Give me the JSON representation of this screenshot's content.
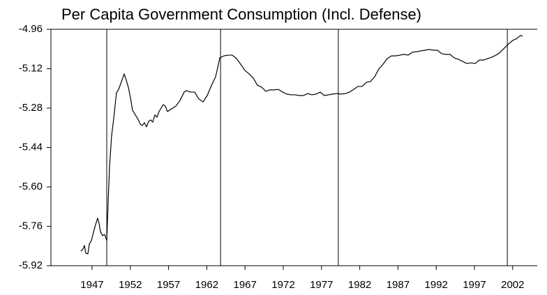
{
  "chart_data": {
    "type": "line",
    "title": "Per Capita Government Consumption (Incl. Defense)",
    "xlim": [
      1941.62,
      2005.21
    ],
    "ylim": [
      -5.92,
      -4.96
    ],
    "yticks": [
      -4.96,
      -5.12,
      -5.28,
      -5.44,
      {
        "value": -5.6,
        "label": "-5.60"
      },
      -5.76,
      -5.92
    ],
    "xticks": [
      1947,
      1952,
      1957,
      1962,
      1967,
      1972,
      1977,
      1982,
      1987,
      1992,
      1997,
      2002
    ],
    "vlines": [
      1948.92,
      1963.8,
      1979.2,
      2001.3
    ],
    "color": "#000000",
    "x": [
      1945.54,
      1945.81,
      1946.0,
      1946.18,
      1946.45,
      1946.64,
      1946.91,
      1947.18,
      1947.46,
      1947.73,
      1947.91,
      1948.09,
      1948.37,
      1948.64,
      1948.92,
      1949.1,
      1949.28,
      1949.55,
      1949.83,
      1950.19,
      1950.47,
      1950.74,
      1951.01,
      1951.2,
      1951.47,
      1951.74,
      1952.02,
      1952.29,
      1952.57,
      1952.84,
      1953.11,
      1953.3,
      1953.57,
      1953.84,
      1954.12,
      1954.39,
      1954.66,
      1954.94,
      1955.21,
      1955.49,
      1955.76,
      1956.03,
      1956.31,
      1956.58,
      1956.85,
      1957.4,
      1957.95,
      1958.5,
      1959.04,
      1959.32,
      1959.86,
      1960.41,
      1960.96,
      1961.51,
      1962.05,
      1962.6,
      1963.15,
      1963.42,
      1963.7,
      1964.24,
      1964.79,
      1965.34,
      1965.89,
      1966.43,
      1966.98,
      1967.53,
      1968.08,
      1968.62,
      1969.17,
      1969.72,
      1970.27,
      1970.81,
      1971.36,
      1971.91,
      1972.46,
      1973.0,
      1973.55,
      1974.1,
      1974.65,
      1975.19,
      1975.74,
      1976.29,
      1976.84,
      1977.38,
      1977.93,
      1978.48,
      1979.03,
      1979.57,
      1980.12,
      1980.67,
      1981.22,
      1981.76,
      1982.31,
      1982.86,
      1983.41,
      1983.95,
      1984.5,
      1985.05,
      1985.59,
      1986.14,
      1986.69,
      1987.24,
      1987.78,
      1988.33,
      1988.88,
      1989.43,
      1989.97,
      1990.52,
      1991.07,
      1991.62,
      1992.16,
      1992.71,
      1993.26,
      1993.81,
      1994.35,
      1994.9,
      1995.45,
      1996.0,
      1996.54,
      1997.09,
      1997.64,
      1998.19,
      1998.73,
      1999.28,
      1999.83,
      2000.38,
      2000.92,
      2001.47,
      2002.02,
      2002.57,
      2003.02,
      2003.3
    ],
    "values": [
      -5.861,
      -5.852,
      -5.838,
      -5.869,
      -5.872,
      -5.832,
      -5.818,
      -5.784,
      -5.753,
      -5.727,
      -5.747,
      -5.781,
      -5.798,
      -5.793,
      -5.818,
      -5.662,
      -5.521,
      -5.393,
      -5.322,
      -5.218,
      -5.204,
      -5.181,
      -5.158,
      -5.141,
      -5.167,
      -5.195,
      -5.238,
      -5.289,
      -5.303,
      -5.317,
      -5.331,
      -5.345,
      -5.351,
      -5.339,
      -5.356,
      -5.334,
      -5.328,
      -5.337,
      -5.308,
      -5.317,
      -5.294,
      -5.28,
      -5.266,
      -5.272,
      -5.294,
      -5.283,
      -5.272,
      -5.249,
      -5.215,
      -5.209,
      -5.215,
      -5.215,
      -5.243,
      -5.255,
      -5.229,
      -5.189,
      -5.153,
      -5.116,
      -5.076,
      -5.068,
      -5.065,
      -5.065,
      -5.079,
      -5.102,
      -5.127,
      -5.141,
      -5.158,
      -5.187,
      -5.195,
      -5.212,
      -5.206,
      -5.206,
      -5.204,
      -5.215,
      -5.223,
      -5.226,
      -5.226,
      -5.229,
      -5.229,
      -5.221,
      -5.226,
      -5.223,
      -5.215,
      -5.229,
      -5.226,
      -5.223,
      -5.221,
      -5.223,
      -5.221,
      -5.215,
      -5.204,
      -5.192,
      -5.192,
      -5.175,
      -5.172,
      -5.153,
      -5.121,
      -5.102,
      -5.079,
      -5.068,
      -5.068,
      -5.065,
      -5.062,
      -5.065,
      -5.053,
      -5.051,
      -5.048,
      -5.045,
      -5.042,
      -5.045,
      -5.045,
      -5.059,
      -5.062,
      -5.062,
      -5.076,
      -5.082,
      -5.09,
      -5.099,
      -5.096,
      -5.099,
      -5.085,
      -5.085,
      -5.079,
      -5.073,
      -5.065,
      -5.053,
      -5.036,
      -5.019,
      -5.005,
      -4.997,
      -4.985,
      -4.988
    ]
  }
}
